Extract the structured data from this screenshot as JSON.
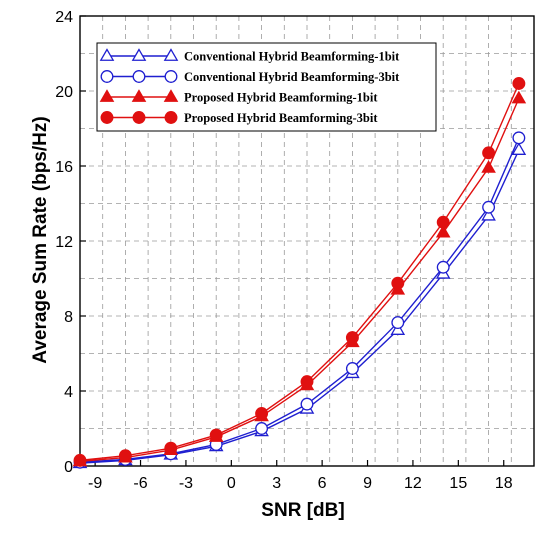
{
  "chart_data": {
    "type": "line",
    "xlabel": "SNR [dB]",
    "ylabel": "Average Sum Rate (bps/Hz)",
    "xlim": [
      -10,
      20
    ],
    "ylim": [
      0,
      24
    ],
    "xticks": [
      -9,
      -6,
      -3,
      0,
      3,
      6,
      9,
      12,
      15,
      18
    ],
    "yticks": [
      0,
      4,
      8,
      12,
      16,
      20,
      24
    ],
    "grid": true,
    "legend_position": "top-left",
    "x": [
      -10,
      -7,
      -4,
      -1,
      2,
      5,
      8,
      11,
      14,
      17,
      19
    ],
    "series": [
      {
        "name": "Conventional Hybrid Beamforming-1bit",
        "color": "#1f1fd0",
        "marker": "triangle-open",
        "values": [
          0.15,
          0.3,
          0.6,
          1.05,
          1.85,
          3.05,
          4.95,
          7.25,
          10.25,
          13.35,
          16.85
        ]
      },
      {
        "name": "Conventional Hybrid Beamforming-3bit",
        "color": "#1f1fd0",
        "marker": "circle-open",
        "values": [
          0.2,
          0.35,
          0.65,
          1.15,
          2.0,
          3.3,
          5.2,
          7.65,
          10.6,
          13.8,
          17.5
        ]
      },
      {
        "name": "Proposed Hybrid Beamforming-1bit",
        "color": "#e01010",
        "marker": "triangle-filled",
        "values": [
          0.25,
          0.45,
          0.85,
          1.55,
          2.65,
          4.3,
          6.6,
          9.4,
          12.45,
          15.9,
          19.6
        ]
      },
      {
        "name": "Proposed Hybrid Beamforming-3bit",
        "color": "#e01010",
        "marker": "circle-filled",
        "values": [
          0.3,
          0.55,
          0.95,
          1.65,
          2.8,
          4.5,
          6.85,
          9.75,
          13.0,
          16.7,
          20.4
        ]
      }
    ]
  }
}
